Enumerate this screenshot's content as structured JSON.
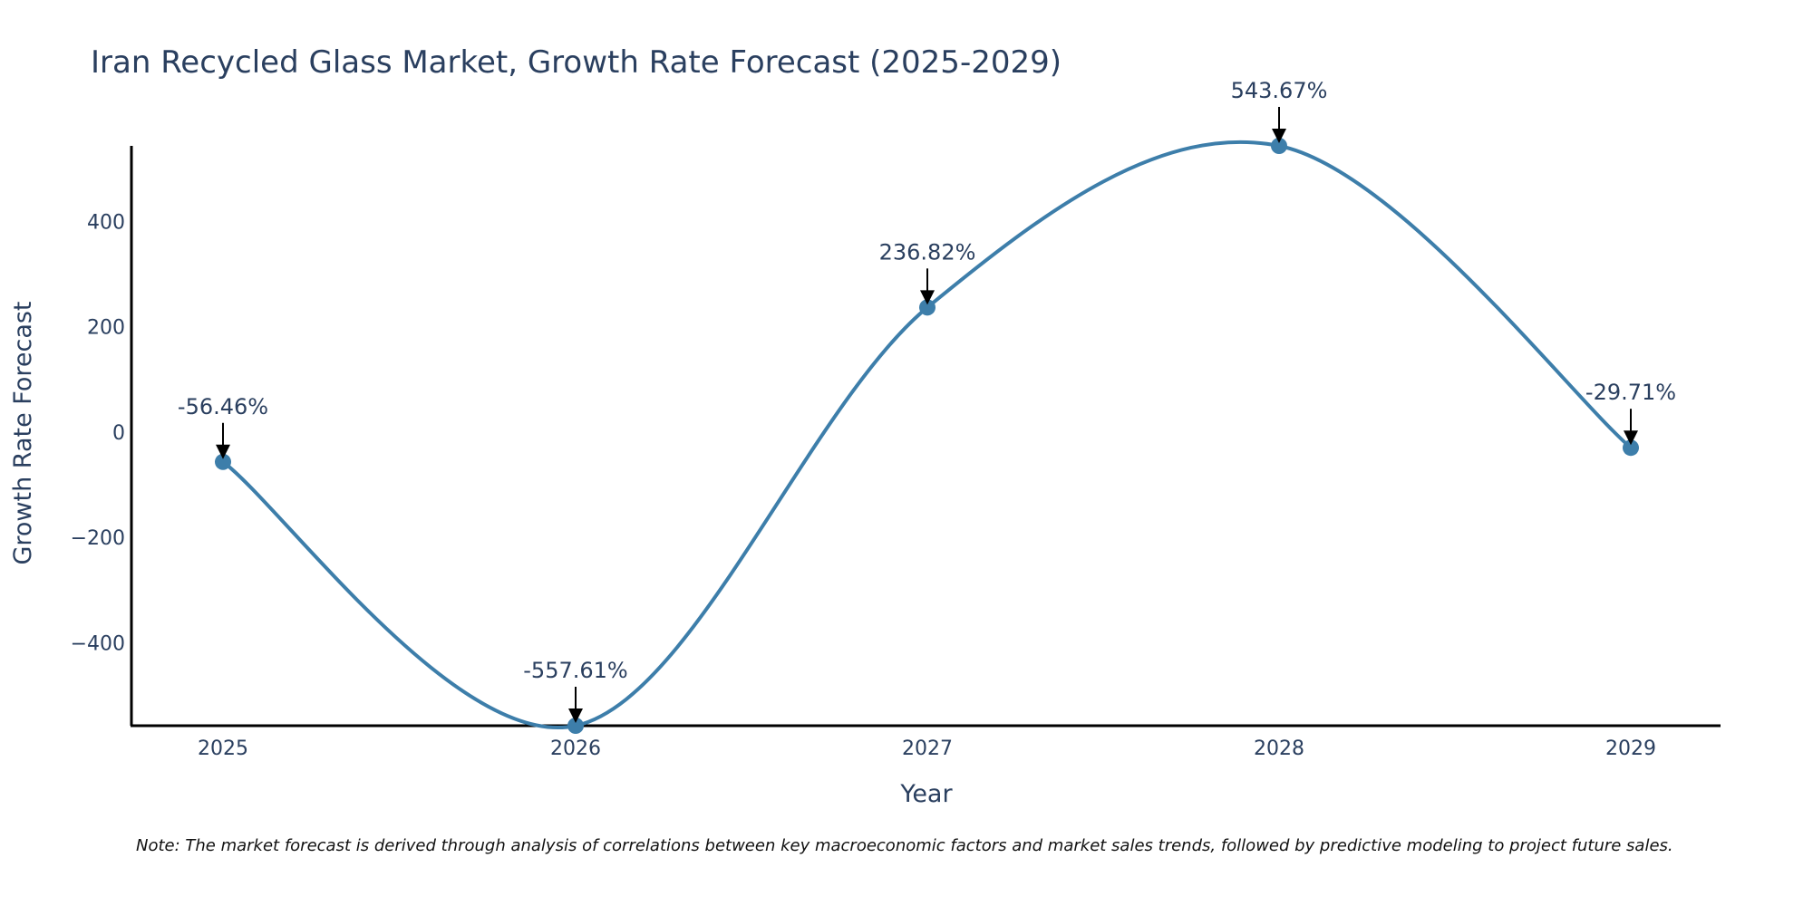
{
  "chart_data": {
    "type": "line",
    "title": "Iran Recycled Glass Market, Growth Rate Forecast (2025-2029)",
    "xlabel": "Year",
    "ylabel": "Growth Rate Forecast",
    "categories": [
      "2025",
      "2026",
      "2027",
      "2028",
      "2029"
    ],
    "values": [
      -56.46,
      -557.61,
      236.82,
      543.67,
      -29.71
    ],
    "data_labels": [
      "-56.46%",
      "-557.61%",
      "236.82%",
      "543.67%",
      "-29.71%"
    ],
    "ylim": [
      -557.61,
      543.67
    ],
    "yticks": [
      -400,
      -200,
      0,
      200,
      400
    ],
    "ytick_labels": [
      "−400",
      "−200",
      "0",
      "200",
      "400"
    ],
    "line_color": "#3d7eaa",
    "grid": false,
    "note": "Note: The market forecast is derived through analysis of correlations between key macroeconomic factors and market sales trends, followed by predictive modeling to project future sales."
  }
}
